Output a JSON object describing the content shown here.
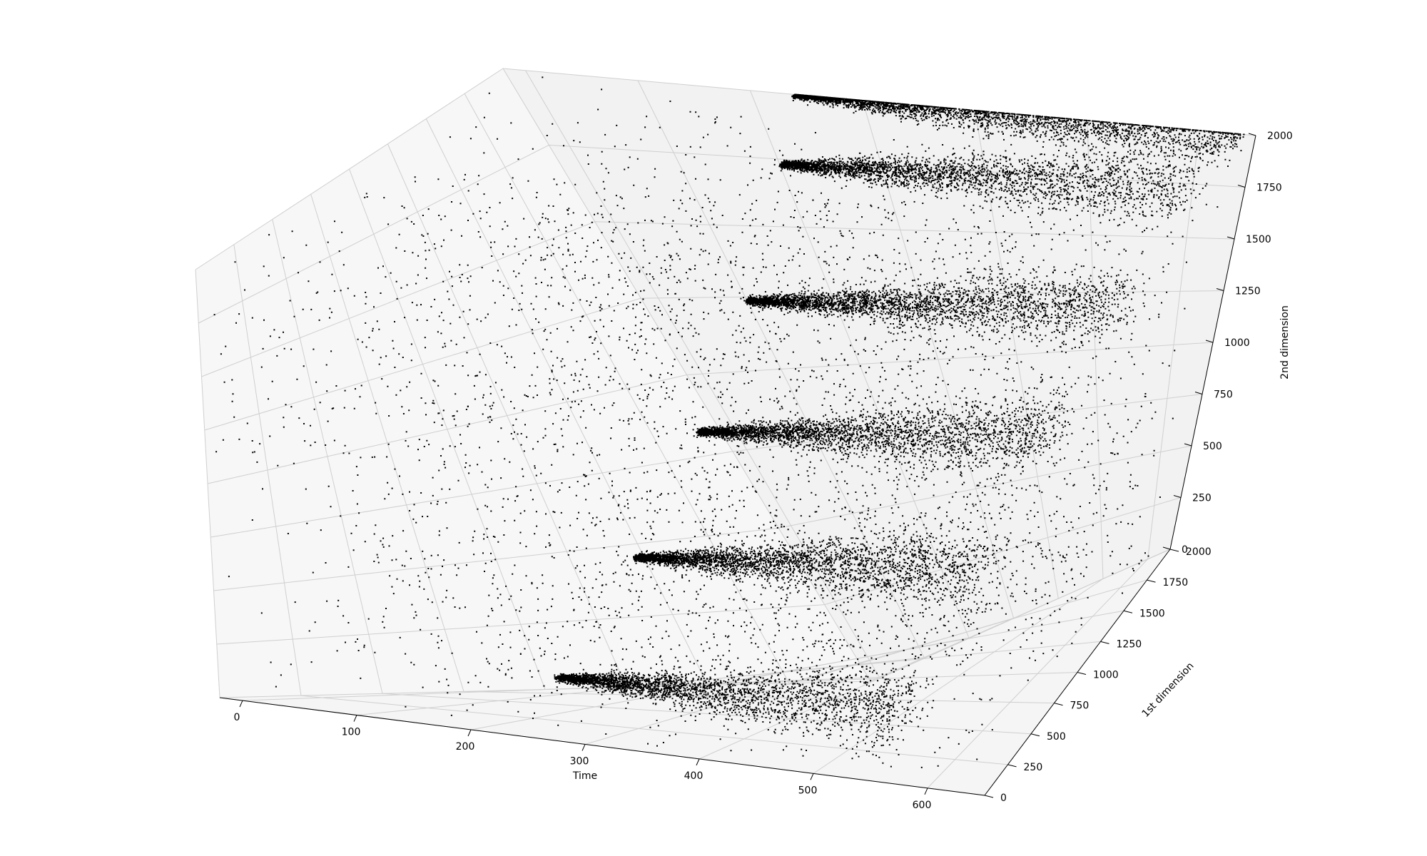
{
  "chart_data": {
    "type": "scatter",
    "subtype": "3d",
    "title": "",
    "xlabel": "Time",
    "ylabel": "1st dimension",
    "zlabel": "2nd dimension",
    "xlim": [
      -20,
      650
    ],
    "ylim": [
      0,
      2000
    ],
    "zlim": [
      0,
      2000
    ],
    "xticks": [
      "0",
      "100",
      "200",
      "300",
      "400",
      "500",
      "600"
    ],
    "yticks": [
      "0",
      "250",
      "500",
      "750",
      "1000",
      "1250",
      "1500",
      "1750",
      "2000"
    ],
    "zticks": [
      "0",
      "250",
      "500",
      "750",
      "1000",
      "1250",
      "1500",
      "1750",
      "2000"
    ],
    "grid": true,
    "marker_color": "#000000",
    "pane_color": "#f2f2f2",
    "clusters": [
      {
        "x_range": [
          240,
          560
        ],
        "y": 200,
        "z": 200
      },
      {
        "x_range": [
          240,
          580
        ],
        "y": 600,
        "z": 600
      },
      {
        "x_range": [
          240,
          600
        ],
        "y": 1000,
        "z": 1000
      },
      {
        "x_range": [
          240,
          610
        ],
        "y": 1400,
        "z": 1400
      },
      {
        "x_range": [
          240,
          620
        ],
        "y": 1800,
        "z": 1800
      },
      {
        "x_range": [
          240,
          640
        ],
        "y": 2000,
        "z": 2000
      }
    ],
    "background_noise": true
  }
}
